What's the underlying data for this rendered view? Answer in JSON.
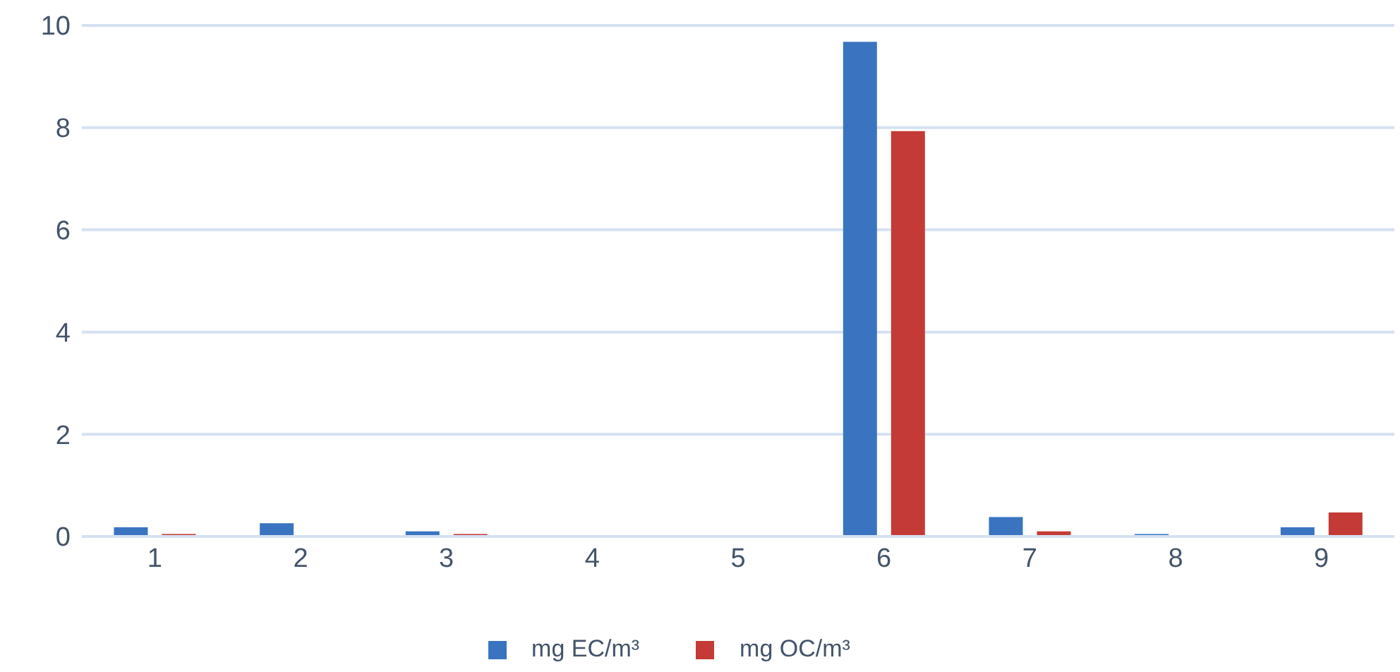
{
  "chart_data": {
    "type": "bar",
    "categories": [
      "1",
      "2",
      "3",
      "4",
      "5",
      "6",
      "7",
      "8",
      "9"
    ],
    "series": [
      {
        "name": "mg EC/m³",
        "color": "#3a74c0",
        "values": [
          0.18,
          0.26,
          0.1,
          0,
          0,
          9.68,
          0.38,
          0.05,
          0.18
        ]
      },
      {
        "name": "mg OC/m³",
        "color": "#c43a36",
        "values": [
          0.05,
          0,
          0.05,
          0,
          0,
          7.93,
          0.1,
          0,
          0.47
        ]
      }
    ],
    "ylim": [
      0,
      10
    ],
    "yticks": [
      0,
      2,
      4,
      6,
      8,
      10
    ],
    "grid": "y",
    "legend": "bottom"
  }
}
